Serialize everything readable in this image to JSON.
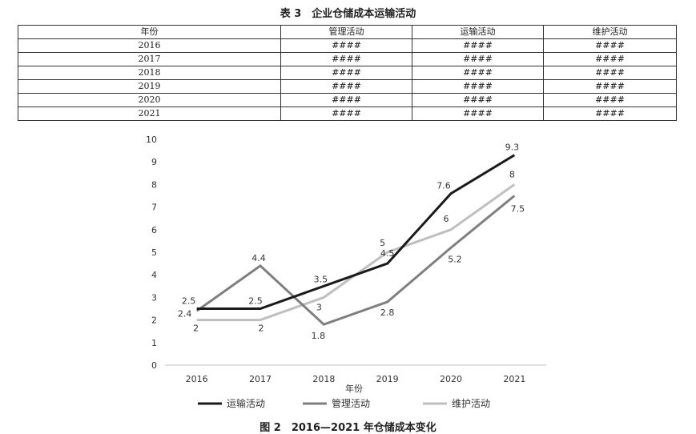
{
  "table": {
    "title": "表 3　企业仓储成本运输活动",
    "headers": [
      "年份",
      "管理活动",
      "运输活动",
      "维护活动"
    ],
    "rows": [
      [
        "2016",
        "####",
        "####",
        "####"
      ],
      [
        "2017",
        "####",
        "####",
        "####"
      ],
      [
        "2018",
        "####",
        "####",
        "####"
      ],
      [
        "2019",
        "####",
        "####",
        "####"
      ],
      [
        "2020",
        "####",
        "####",
        "####"
      ],
      [
        "2021",
        "####",
        "####",
        "####"
      ]
    ]
  },
  "figure": {
    "caption": "图 2　2016—2021 年仓储成本变化"
  },
  "chart_data": {
    "type": "line",
    "title": "",
    "xlabel": "年份",
    "ylabel": "",
    "x": [
      "2016",
      "2017",
      "2018",
      "2019",
      "2020",
      "2021"
    ],
    "ylim": [
      0,
      10
    ],
    "yticks": [
      0,
      1,
      2,
      3,
      4,
      5,
      6,
      7,
      8,
      9,
      10
    ],
    "grid": false,
    "legend_position": "bottom",
    "series": [
      {
        "name": "运输活动",
        "color": "#1a1a1a",
        "values": [
          2.5,
          2.5,
          3.5,
          4.5,
          7.6,
          9.3
        ]
      },
      {
        "name": "管理活动",
        "color": "#7f7f7f",
        "values": [
          2.4,
          4.4,
          1.8,
          2.8,
          5.2,
          7.5
        ]
      },
      {
        "name": "维护活动",
        "color": "#bfbfbf",
        "values": [
          2,
          2,
          3,
          5,
          6,
          8
        ]
      }
    ]
  }
}
